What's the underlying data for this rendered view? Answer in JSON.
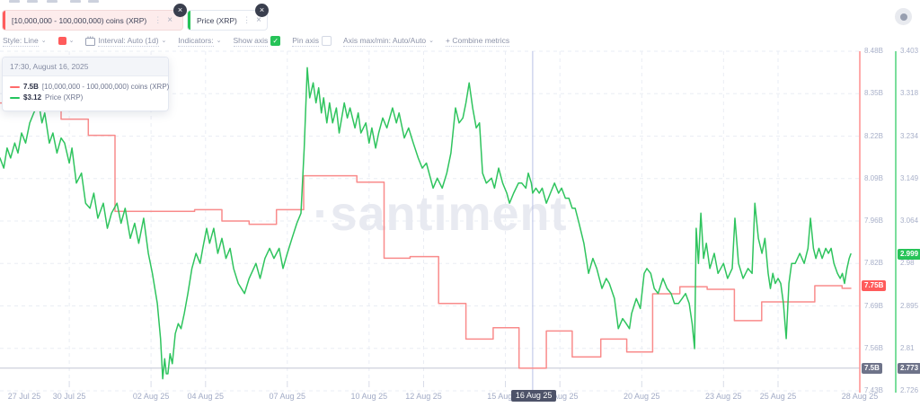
{
  "watermark": "·santiment",
  "ui_glyphs": {
    "close": "×",
    "kebab": "⋮",
    "caret": "⌄",
    "check": "✓"
  },
  "tabs": [
    {
      "label": "[10,000,000 - 100,000,000) coins (XRP)",
      "color": "#ff5b5b"
    },
    {
      "label": "Price (XRP)",
      "color": "#26c358"
    }
  ],
  "toolbar": {
    "style_label": "Style: Line",
    "interval_label": "Interval: Auto (1d)",
    "indicators_label": "Indicators:",
    "show_axis_label": "Show axis",
    "pin_axis_label": "Pin axis",
    "axis_maxmin_label": "Axis max/min: Auto/Auto",
    "combine_label": "+ Combine metrics",
    "swatch_color": "#ff5b5b",
    "show_axis_checked": true,
    "pin_axis_checked": false
  },
  "tooltip": {
    "header": "17:30, August 16, 2025",
    "rows": [
      {
        "value": "7.5B",
        "label": "[10,000,000 - 100,000,000) coins (XRP)",
        "color": "#ff6b6b"
      },
      {
        "value": "$3.12",
        "label": "Price (XRP)",
        "color": "#24c55e"
      }
    ]
  },
  "chart_data": {
    "type": "line",
    "title": "",
    "supply_axis": {
      "max": 8.48,
      "min": 7.43,
      "color": "#ff8f8f",
      "ticks": [
        "8.48B",
        "8.35B",
        "8.22B",
        "8.09B",
        "7.96B",
        "7.82B",
        "7.69B",
        "7.56B",
        "7.43B"
      ]
    },
    "price_axis": {
      "max": 3.403,
      "min": 2.726,
      "color": "#4fd37c",
      "ticks": [
        "3.403",
        "3.318",
        "3.234",
        "3.149",
        "3.064",
        "2.98",
        "2.895",
        "2.81",
        "2.726"
      ]
    },
    "x_axis": {
      "domain_days": [
        0.46,
        32
      ],
      "ticks": [
        {
          "label": "27 Jul 25",
          "day": 0
        },
        {
          "label": "30 Jul 25",
          "day": 3
        },
        {
          "label": "02 Aug 25",
          "day": 6
        },
        {
          "label": "04 Aug 25",
          "day": 8
        },
        {
          "label": "07 Aug 25",
          "day": 11
        },
        {
          "label": "10 Aug 25",
          "day": 14
        },
        {
          "label": "12 Aug 25",
          "day": 16
        },
        {
          "label": "15 Aug 25",
          "day": 19
        },
        {
          "label": "17 Aug 25",
          "day": 21
        },
        {
          "label": "20 Aug 25",
          "day": 24
        },
        {
          "label": "23 Aug 25",
          "day": 27
        },
        {
          "label": "25 Aug 25",
          "day": 29
        },
        {
          "label": "28 Aug 25",
          "day": 32
        }
      ]
    },
    "crosshair": {
      "day": 20,
      "date_label": "16 Aug 25",
      "supply_value": 7.5,
      "price_value": 2.773
    },
    "badges": {
      "supply_current": "7.75B",
      "supply_current_value": 7.755,
      "price_current": "2.999",
      "price_current_value": 2.999,
      "supply_crosshair": "7.5B",
      "price_crosshair": "2.773"
    },
    "series": [
      {
        "name": "[10,000,000 - 100,000,000) coins (XRP)",
        "axis": "supply",
        "style": "step",
        "color": "#f98b8b",
        "end_day": 31.67,
        "points": [
          [
            0.46,
            8.32
          ],
          [
            2.7,
            8.27
          ],
          [
            3.7,
            8.22
          ],
          [
            4.68,
            7.985
          ],
          [
            7.6,
            7.99
          ],
          [
            8.6,
            7.955
          ],
          [
            9.6,
            7.945
          ],
          [
            10.6,
            7.99
          ],
          [
            11.6,
            8.095
          ],
          [
            13.55,
            8.075
          ],
          [
            14.55,
            7.84
          ],
          [
            15.5,
            7.845
          ],
          [
            16.55,
            7.7
          ],
          [
            17.55,
            7.59
          ],
          [
            18.55,
            7.625
          ],
          [
            19.5,
            7.5
          ],
          [
            20.5,
            7.615
          ],
          [
            21.45,
            7.535
          ],
          [
            22.5,
            7.59
          ],
          [
            23.45,
            7.55
          ],
          [
            24.4,
            7.73
          ],
          [
            25.4,
            7.752
          ],
          [
            26.4,
            7.744
          ],
          [
            27.4,
            7.647
          ],
          [
            28.4,
            7.705
          ],
          [
            30.35,
            7.755
          ],
          [
            31.35,
            7.747
          ]
        ]
      },
      {
        "name": "Price (XRP)",
        "axis": "price",
        "style": "line",
        "color": "#2fc45e",
        "end_day": 31.67,
        "points": [
          [
            0.46,
            3.19
          ],
          [
            0.6,
            3.17
          ],
          [
            0.72,
            3.21
          ],
          [
            0.85,
            3.19
          ],
          [
            1.0,
            3.22
          ],
          [
            1.12,
            3.2
          ],
          [
            1.25,
            3.24
          ],
          [
            1.4,
            3.22
          ],
          [
            1.55,
            3.26
          ],
          [
            1.7,
            3.28
          ],
          [
            1.88,
            3.3
          ],
          [
            2.0,
            3.26
          ],
          [
            2.1,
            3.28
          ],
          [
            2.27,
            3.22
          ],
          [
            2.4,
            3.24
          ],
          [
            2.55,
            3.2
          ],
          [
            2.7,
            3.23
          ],
          [
            2.83,
            3.22
          ],
          [
            3.0,
            3.18
          ],
          [
            3.1,
            3.21
          ],
          [
            3.26,
            3.14
          ],
          [
            3.45,
            3.16
          ],
          [
            3.6,
            3.1
          ],
          [
            3.76,
            3.09
          ],
          [
            3.9,
            3.12
          ],
          [
            4.05,
            3.07
          ],
          [
            4.25,
            3.1
          ],
          [
            4.4,
            3.05
          ],
          [
            4.55,
            3.08
          ],
          [
            4.75,
            3.1
          ],
          [
            4.9,
            3.06
          ],
          [
            5.05,
            3.09
          ],
          [
            5.24,
            3.03
          ],
          [
            5.4,
            3.06
          ],
          [
            5.55,
            3.02
          ],
          [
            5.73,
            3.07
          ],
          [
            5.9,
            3.0
          ],
          [
            6.05,
            2.96
          ],
          [
            6.23,
            2.9
          ],
          [
            6.35,
            2.83
          ],
          [
            6.43,
            2.75
          ],
          [
            6.5,
            2.79
          ],
          [
            6.56,
            2.76
          ],
          [
            6.62,
            2.76
          ],
          [
            6.7,
            2.8
          ],
          [
            6.78,
            2.78
          ],
          [
            6.89,
            2.84
          ],
          [
            7.0,
            2.86
          ],
          [
            7.1,
            2.85
          ],
          [
            7.22,
            2.88
          ],
          [
            7.35,
            2.92
          ],
          [
            7.5,
            2.97
          ],
          [
            7.65,
            3.0
          ],
          [
            7.8,
            2.98
          ],
          [
            7.9,
            3.01
          ],
          [
            8.04,
            3.05
          ],
          [
            8.15,
            3.02
          ],
          [
            8.3,
            3.05
          ],
          [
            8.45,
            3.0
          ],
          [
            8.6,
            3.03
          ],
          [
            8.75,
            2.99
          ],
          [
            8.9,
            3.01
          ],
          [
            9.03,
            2.97
          ],
          [
            9.2,
            2.94
          ],
          [
            9.43,
            2.92
          ],
          [
            9.6,
            2.95
          ],
          [
            9.85,
            2.98
          ],
          [
            10.0,
            2.95
          ],
          [
            10.18,
            2.99
          ],
          [
            10.35,
            3.01
          ],
          [
            10.51,
            2.99
          ],
          [
            10.7,
            3.01
          ],
          [
            10.84,
            2.97
          ],
          [
            11.0,
            3.0
          ],
          [
            11.17,
            3.03
          ],
          [
            11.35,
            3.06
          ],
          [
            11.5,
            3.08
          ],
          [
            11.62,
            3.21
          ],
          [
            11.73,
            3.37
          ],
          [
            11.82,
            3.31
          ],
          [
            11.95,
            3.34
          ],
          [
            12.05,
            3.3
          ],
          [
            12.15,
            3.33
          ],
          [
            12.25,
            3.28
          ],
          [
            12.33,
            3.31
          ],
          [
            12.45,
            3.26
          ],
          [
            12.55,
            3.3
          ],
          [
            12.66,
            3.26
          ],
          [
            12.8,
            3.29
          ],
          [
            12.9,
            3.24
          ],
          [
            13.09,
            3.3
          ],
          [
            13.2,
            3.27
          ],
          [
            13.3,
            3.29
          ],
          [
            13.48,
            3.25
          ],
          [
            13.6,
            3.28
          ],
          [
            13.7,
            3.24
          ],
          [
            13.88,
            3.26
          ],
          [
            14.0,
            3.22
          ],
          [
            14.1,
            3.25
          ],
          [
            14.24,
            3.21
          ],
          [
            14.35,
            3.24
          ],
          [
            14.5,
            3.27
          ],
          [
            14.65,
            3.25
          ],
          [
            14.86,
            3.29
          ],
          [
            15.0,
            3.26
          ],
          [
            15.1,
            3.28
          ],
          [
            15.29,
            3.23
          ],
          [
            15.45,
            3.25
          ],
          [
            15.62,
            3.22
          ],
          [
            15.8,
            3.19
          ],
          [
            15.95,
            3.17
          ],
          [
            16.1,
            3.18
          ],
          [
            16.35,
            3.13
          ],
          [
            16.5,
            3.15
          ],
          [
            16.68,
            3.13
          ],
          [
            16.85,
            3.16
          ],
          [
            17.0,
            3.2
          ],
          [
            17.17,
            3.29
          ],
          [
            17.3,
            3.26
          ],
          [
            17.44,
            3.27
          ],
          [
            17.55,
            3.3
          ],
          [
            17.67,
            3.34
          ],
          [
            17.8,
            3.29
          ],
          [
            17.93,
            3.25
          ],
          [
            18.05,
            3.26
          ],
          [
            18.16,
            3.16
          ],
          [
            18.3,
            3.14
          ],
          [
            18.49,
            3.15
          ],
          [
            18.6,
            3.13
          ],
          [
            18.75,
            3.17
          ],
          [
            18.9,
            3.14
          ],
          [
            19.05,
            3.12
          ],
          [
            19.15,
            3.1
          ],
          [
            19.3,
            3.12
          ],
          [
            19.48,
            3.14
          ],
          [
            19.6,
            3.14
          ],
          [
            19.75,
            3.13
          ],
          [
            19.84,
            3.16
          ],
          [
            19.95,
            3.14
          ],
          [
            20.0,
            3.12
          ],
          [
            20.12,
            3.13
          ],
          [
            20.24,
            3.12
          ],
          [
            20.35,
            3.13
          ],
          [
            20.5,
            3.1
          ],
          [
            20.65,
            3.12
          ],
          [
            20.8,
            3.14
          ],
          [
            20.95,
            3.12
          ],
          [
            21.06,
            3.13
          ],
          [
            21.2,
            3.11
          ],
          [
            21.33,
            3.11
          ],
          [
            21.45,
            3.09
          ],
          [
            21.56,
            3.09
          ],
          [
            21.7,
            3.06
          ],
          [
            21.88,
            3.02
          ],
          [
            22.05,
            2.96
          ],
          [
            22.21,
            2.99
          ],
          [
            22.35,
            2.97
          ],
          [
            22.54,
            2.93
          ],
          [
            22.7,
            2.95
          ],
          [
            22.81,
            2.94
          ],
          [
            23.0,
            2.91
          ],
          [
            23.14,
            2.85
          ],
          [
            23.3,
            2.87
          ],
          [
            23.43,
            2.86
          ],
          [
            23.55,
            2.85
          ],
          [
            23.63,
            2.88
          ],
          [
            23.8,
            2.91
          ],
          [
            23.95,
            2.89
          ],
          [
            24.09,
            2.96
          ],
          [
            24.19,
            2.97
          ],
          [
            24.33,
            2.96
          ],
          [
            24.46,
            2.93
          ],
          [
            24.6,
            2.92
          ],
          [
            24.78,
            2.95
          ],
          [
            24.93,
            2.93
          ],
          [
            25.08,
            2.92
          ],
          [
            25.2,
            2.9
          ],
          [
            25.35,
            2.9
          ],
          [
            25.48,
            2.91
          ],
          [
            25.61,
            2.92
          ],
          [
            25.74,
            2.9
          ],
          [
            25.85,
            2.86
          ],
          [
            25.94,
            2.81
          ],
          [
            26.0,
            3.05
          ],
          [
            26.08,
            2.98
          ],
          [
            26.17,
            3.08
          ],
          [
            26.27,
            2.99
          ],
          [
            26.37,
            3.02
          ],
          [
            26.5,
            2.97
          ],
          [
            26.66,
            3.0
          ],
          [
            26.8,
            2.96
          ],
          [
            27.0,
            2.98
          ],
          [
            27.15,
            2.95
          ],
          [
            27.32,
            2.97
          ],
          [
            27.42,
            3.07
          ],
          [
            27.55,
            2.98
          ],
          [
            27.72,
            2.95
          ],
          [
            27.9,
            2.97
          ],
          [
            28.05,
            2.96
          ],
          [
            28.15,
            3.1
          ],
          [
            28.28,
            3.03
          ],
          [
            28.41,
            3.0
          ],
          [
            28.52,
            3.03
          ],
          [
            28.64,
            2.96
          ],
          [
            28.72,
            2.93
          ],
          [
            28.81,
            2.96
          ],
          [
            28.9,
            2.94
          ],
          [
            29.0,
            2.95
          ],
          [
            29.1,
            2.94
          ],
          [
            29.2,
            2.9
          ],
          [
            29.3,
            2.83
          ],
          [
            29.4,
            2.94
          ],
          [
            29.5,
            2.98
          ],
          [
            29.63,
            2.98
          ],
          [
            29.8,
            3.0
          ],
          [
            29.96,
            2.98
          ],
          [
            30.1,
            3.01
          ],
          [
            30.19,
            3.07
          ],
          [
            30.3,
            3.01
          ],
          [
            30.39,
            2.99
          ],
          [
            30.5,
            3.01
          ],
          [
            30.62,
            2.99
          ],
          [
            30.75,
            3.01
          ],
          [
            30.85,
            3.0
          ],
          [
            30.95,
            3.01
          ],
          [
            31.05,
            2.98
          ],
          [
            31.18,
            2.96
          ],
          [
            31.28,
            2.95
          ],
          [
            31.36,
            2.96
          ],
          [
            31.44,
            2.94
          ],
          [
            31.53,
            2.97
          ],
          [
            31.61,
            2.99
          ],
          [
            31.67,
            2.999
          ]
        ]
      }
    ]
  }
}
